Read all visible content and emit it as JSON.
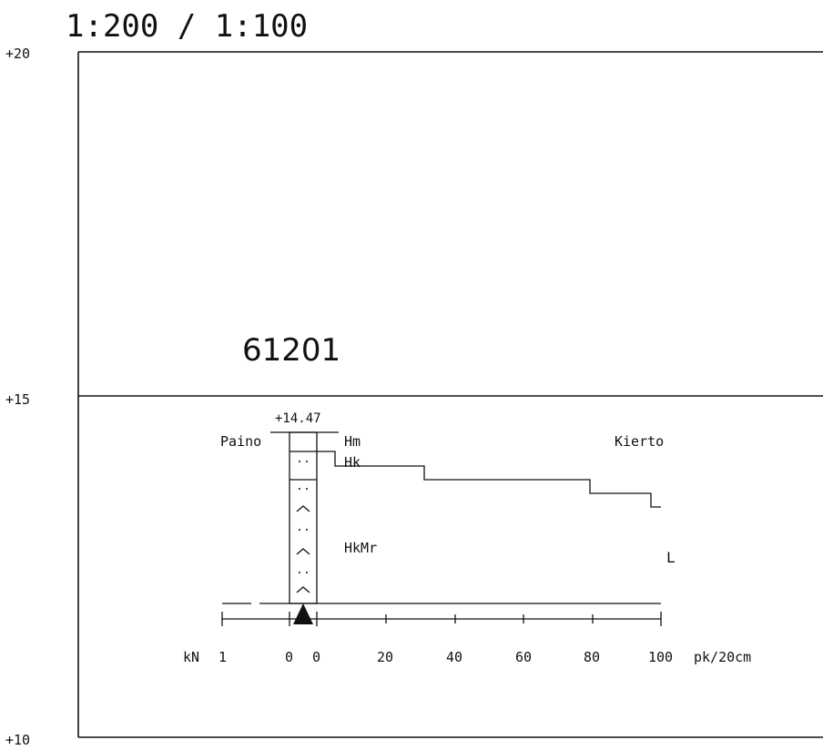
{
  "scale_label": "1:200 / 1:100",
  "elevations": {
    "top": "+20",
    "middle": "+15",
    "bottom": "+10"
  },
  "point_id": "61201",
  "ground_level": "+14.47",
  "labels": {
    "paino": "Paino",
    "kierto": "Kierto",
    "stop": "L",
    "kn": "kN",
    "unit": "pk/20cm"
  },
  "layers": [
    {
      "code": "Hm"
    },
    {
      "code": "Hk"
    },
    {
      "code": "HkMr"
    }
  ],
  "axis": {
    "weight_ticks": [
      "1",
      "0"
    ],
    "turn_ticks": [
      "0",
      "20",
      "40",
      "60",
      "80",
      "100"
    ]
  },
  "profile": {
    "type": "step-line",
    "x_unit": "pk/20cm",
    "steps": [
      {
        "x": 5,
        "level": 14.2
      },
      {
        "x": 30,
        "level": 14.05
      },
      {
        "x": 80,
        "level": 13.72
      },
      {
        "x": 97,
        "level": 13.55
      }
    ]
  },
  "colors": {
    "ink": "#111111",
    "background": "#ffffff"
  }
}
